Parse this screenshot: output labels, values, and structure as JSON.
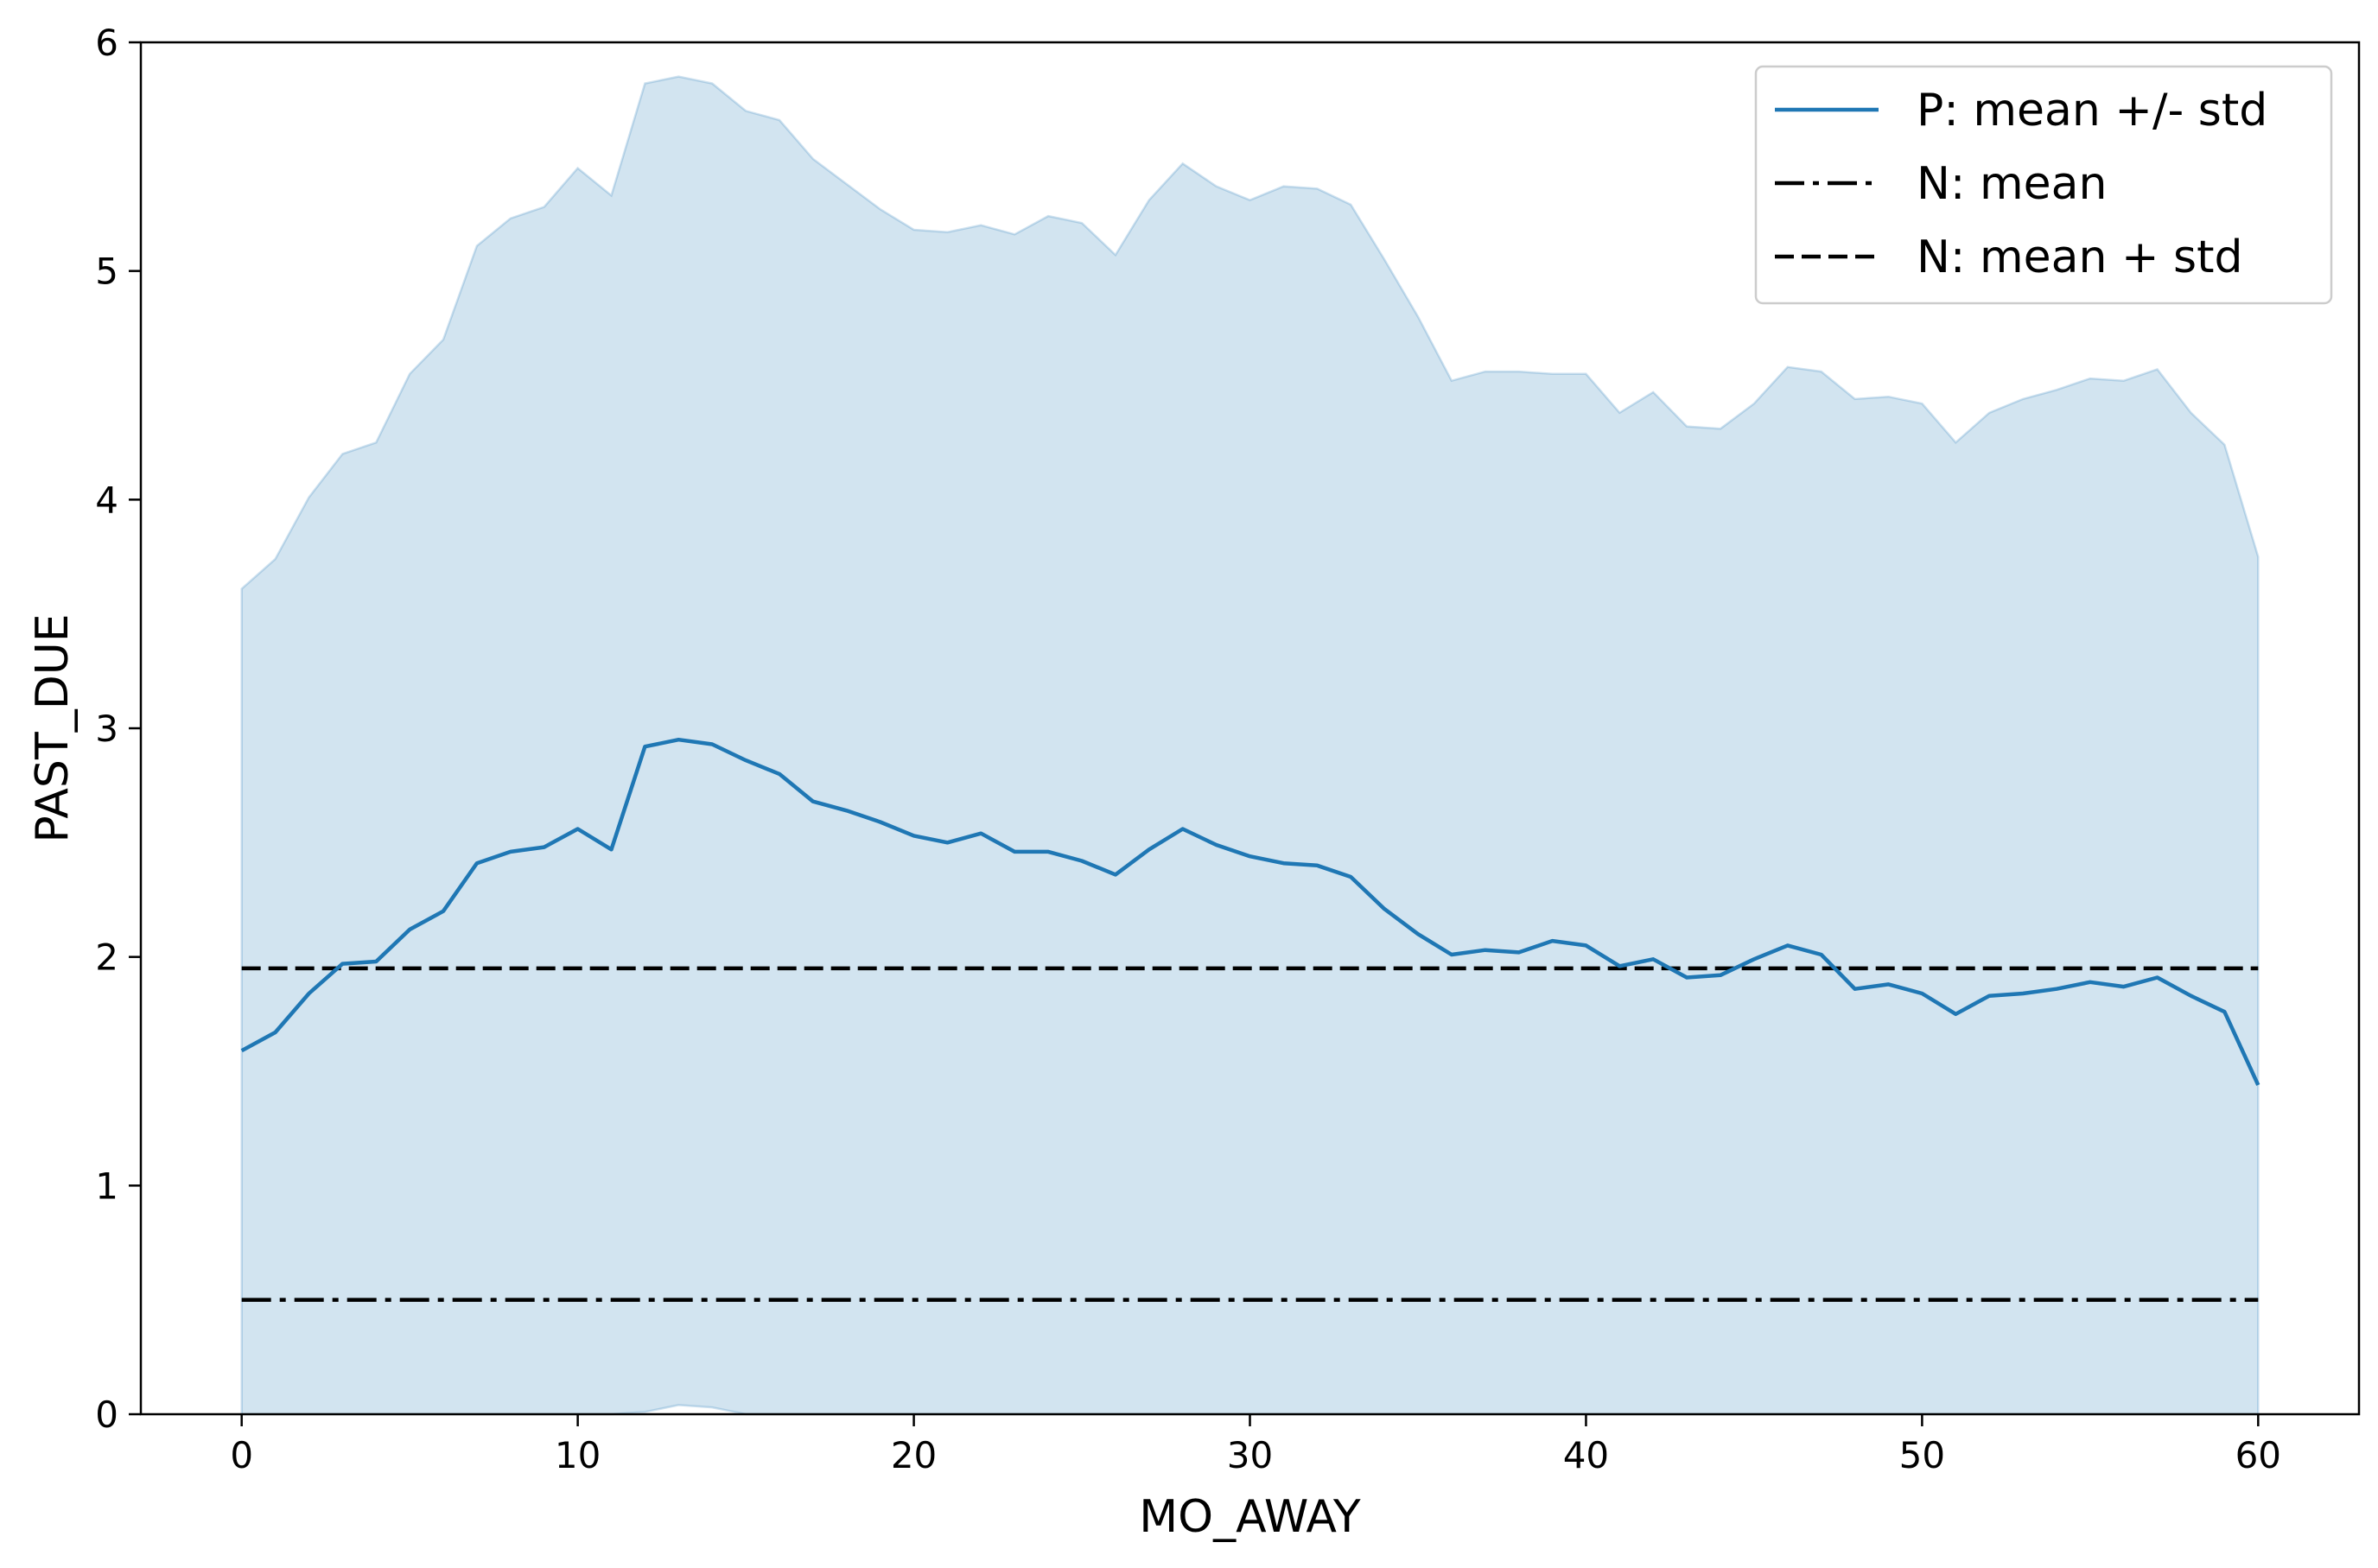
{
  "chart_data": {
    "type": "line",
    "title": "",
    "xlabel": "MO_AWAY",
    "ylabel": "PAST_DUE",
    "xlim": [
      -3,
      63
    ],
    "ylim": [
      0,
      6
    ],
    "x_ticks": [
      0,
      10,
      20,
      30,
      40,
      50,
      60
    ],
    "y_ticks": [
      0,
      1,
      2,
      3,
      4,
      5,
      6
    ],
    "grid": false,
    "legend_position": "top-right",
    "x": [
      0,
      1,
      2,
      3,
      4,
      5,
      6,
      7,
      8,
      9,
      10,
      11,
      12,
      13,
      14,
      15,
      16,
      17,
      18,
      19,
      20,
      21,
      22,
      23,
      24,
      25,
      26,
      27,
      28,
      29,
      30,
      31,
      32,
      33,
      34,
      35,
      36,
      37,
      38,
      39,
      40,
      41,
      42,
      43,
      44,
      45,
      46,
      47,
      48,
      49,
      50,
      51,
      52,
      53,
      54,
      55,
      56,
      57,
      58,
      59,
      60
    ],
    "series": [
      {
        "name": "P: mean +/- std",
        "kind": "line_with_band",
        "color": "#1f77b4",
        "band_color": "#1f77b4",
        "values": [
          1.59,
          1.67,
          1.84,
          1.97,
          1.98,
          2.12,
          2.2,
          2.41,
          2.46,
          2.48,
          2.56,
          2.47,
          2.92,
          2.95,
          2.93,
          2.86,
          2.8,
          2.68,
          2.64,
          2.59,
          2.53,
          2.5,
          2.54,
          2.46,
          2.46,
          2.42,
          2.36,
          2.47,
          2.56,
          2.49,
          2.44,
          2.41,
          2.4,
          2.35,
          2.21,
          2.1,
          2.01,
          2.03,
          2.02,
          2.07,
          2.05,
          1.96,
          1.99,
          1.91,
          1.92,
          1.99,
          2.05,
          2.01,
          1.86,
          1.88,
          1.84,
          1.75,
          1.83,
          1.84,
          1.86,
          1.89,
          1.87,
          1.91,
          1.83,
          1.76,
          1.44
        ],
        "upper": [
          3.61,
          3.74,
          4.01,
          4.2,
          4.25,
          4.55,
          4.7,
          5.11,
          5.23,
          5.28,
          5.45,
          5.33,
          5.82,
          5.85,
          5.82,
          5.7,
          5.66,
          5.49,
          5.38,
          5.27,
          5.18,
          5.17,
          5.2,
          5.16,
          5.24,
          5.21,
          5.07,
          5.31,
          5.47,
          5.37,
          5.31,
          5.37,
          5.36,
          5.29,
          5.05,
          4.8,
          4.52,
          4.56,
          4.56,
          4.55,
          4.55,
          4.38,
          4.47,
          4.32,
          4.31,
          4.42,
          4.58,
          4.56,
          4.44,
          4.45,
          4.42,
          4.25,
          4.38,
          4.44,
          4.48,
          4.53,
          4.52,
          4.57,
          4.38,
          4.24,
          3.75
        ],
        "lower": [
          0,
          0,
          0,
          0,
          0,
          0,
          0,
          0,
          0,
          0,
          0,
          0,
          0.01,
          0.04,
          0.03,
          0,
          0,
          0,
          0,
          0,
          0,
          0,
          0,
          0,
          0,
          0,
          0,
          0,
          0,
          0,
          0,
          0,
          0,
          0,
          0,
          0,
          0,
          0,
          0,
          0,
          0,
          0,
          0,
          0,
          0,
          0,
          0,
          0,
          0,
          0,
          0,
          0,
          0,
          0,
          0,
          0,
          0,
          0,
          0,
          0,
          0
        ]
      },
      {
        "name": "N: mean",
        "kind": "hline",
        "style": "dashdot",
        "color": "#000000",
        "value": 0.5,
        "x_range": [
          0,
          60
        ]
      },
      {
        "name": "N: mean + std",
        "kind": "hline",
        "style": "dashed",
        "color": "#000000",
        "value": 1.95,
        "x_range": [
          0,
          60
        ]
      }
    ]
  }
}
